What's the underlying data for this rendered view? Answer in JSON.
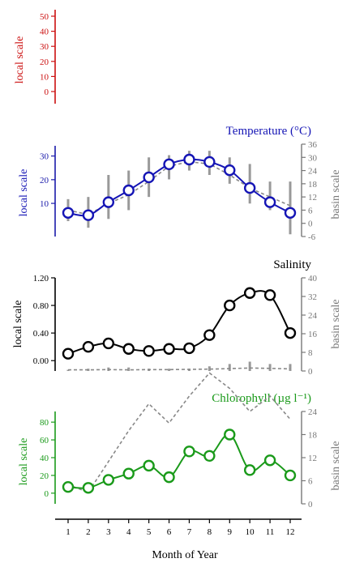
{
  "chart_data": [
    {
      "type": "line",
      "panel": "top",
      "title": "",
      "ylabel_left": "local scale",
      "ylim_left": [
        -5,
        55
      ],
      "yticks_left": [
        "0",
        "10",
        "20",
        "30",
        "40",
        "50"
      ],
      "series": [],
      "colors": {
        "axis": "#cc1111"
      }
    },
    {
      "type": "line",
      "panel": "temperature",
      "title": "Temperature (°C)",
      "ylabel_left": "local scale",
      "ylabel_right": "basin scale",
      "ylim_left": [
        -4,
        35
      ],
      "ylim_right": [
        -6,
        36
      ],
      "yticks_left": [
        "10",
        "20",
        "30"
      ],
      "yticks_right": [
        "-6",
        "0",
        "6",
        "12",
        "18",
        "24",
        "30",
        "36"
      ],
      "x": [
        1,
        2,
        3,
        4,
        5,
        6,
        7,
        8,
        9,
        10,
        11,
        12
      ],
      "series": [
        {
          "role": "local",
          "values": [
            6,
            5,
            10.5,
            15.5,
            21,
            26.5,
            28.5,
            27.5,
            24,
            16.5,
            10.5,
            6
          ]
        },
        {
          "role": "basin-mean",
          "values": [
            6,
            4,
            9,
            13,
            19,
            26,
            28,
            27,
            22,
            16,
            12,
            8
          ]
        }
      ],
      "whiskers_right": [
        [
          1,
          11
        ],
        [
          -2,
          12
        ],
        [
          2,
          22
        ],
        [
          6,
          24
        ],
        [
          12,
          30
        ],
        [
          20,
          31
        ],
        [
          24,
          33
        ],
        [
          22,
          33
        ],
        [
          18,
          30
        ],
        [
          9,
          27
        ],
        [
          6,
          19
        ],
        [
          -5,
          19
        ]
      ],
      "colors": {
        "axis": "#1a1aaa",
        "line": "#1515b5",
        "basin": "#888888"
      }
    },
    {
      "type": "line",
      "panel": "salinity",
      "title": "Salinity",
      "ylabel_left": "local scale",
      "ylabel_right": "basin scale",
      "ylim_left": [
        -0.15,
        1.2
      ],
      "ylim_right": [
        0,
        40
      ],
      "yticks_left": [
        "0.00",
        "0.40",
        "0.80",
        "1.20"
      ],
      "yticks_right": [
        "0",
        "8",
        "16",
        "24",
        "32",
        "40"
      ],
      "x": [
        1,
        2,
        3,
        4,
        5,
        6,
        7,
        8,
        9,
        10,
        11,
        12
      ],
      "series": [
        {
          "role": "local",
          "values": [
            0.1,
            0.2,
            0.25,
            0.17,
            0.14,
            0.17,
            0.18,
            0.37,
            0.8,
            0.98,
            0.95,
            0.4
          ]
        },
        {
          "role": "basin-mean",
          "values": [
            0.5,
            0.5,
            0.6,
            0.5,
            0.6,
            0.6,
            0.7,
            0.8,
            1,
            1.3,
            1.1,
            0.9
          ]
        }
      ],
      "whiskers_right": [
        [
          0,
          0.5
        ],
        [
          0,
          1
        ],
        [
          0,
          1.5
        ],
        [
          0,
          1.5
        ],
        [
          0,
          1
        ],
        [
          0,
          1
        ],
        [
          0,
          1
        ],
        [
          0,
          2
        ],
        [
          0,
          3
        ],
        [
          0,
          4
        ],
        [
          0,
          3
        ],
        [
          0,
          3
        ]
      ],
      "colors": {
        "axis": "#000000",
        "line": "#000000",
        "basin": "#888888"
      }
    },
    {
      "type": "line",
      "panel": "chlorophyll",
      "title": "Chlorophyll (µg l⁻¹)",
      "ylabel_left": "local scale",
      "ylabel_right": "basin scale",
      "ylim_left": [
        -12,
        92
      ],
      "ylim_right": [
        0,
        24
      ],
      "yticks_left": [
        "0",
        "20",
        "40",
        "60",
        "80"
      ],
      "yticks_right": [
        "0",
        "6",
        "12",
        "18",
        "24"
      ],
      "x": [
        1,
        2,
        3,
        4,
        5,
        6,
        7,
        8,
        9,
        10,
        11,
        12
      ],
      "series": [
        {
          "role": "local",
          "values": [
            7,
            6,
            15,
            22,
            31,
            18,
            47,
            42,
            66,
            26,
            37,
            20
          ]
        },
        {
          "role": "basin-mean",
          "values": [
            5,
            3,
            11,
            19,
            26,
            21,
            28,
            34,
            30,
            24,
            28,
            22
          ]
        }
      ],
      "colors": {
        "axis": "#1a9a1a",
        "line": "#1a9a1a",
        "basin": "#888888"
      }
    }
  ],
  "xaxis": {
    "label": "Month of Year",
    "ticks": [
      "1",
      "2",
      "3",
      "4",
      "5",
      "6",
      "7",
      "8",
      "9",
      "10",
      "11",
      "12"
    ]
  }
}
